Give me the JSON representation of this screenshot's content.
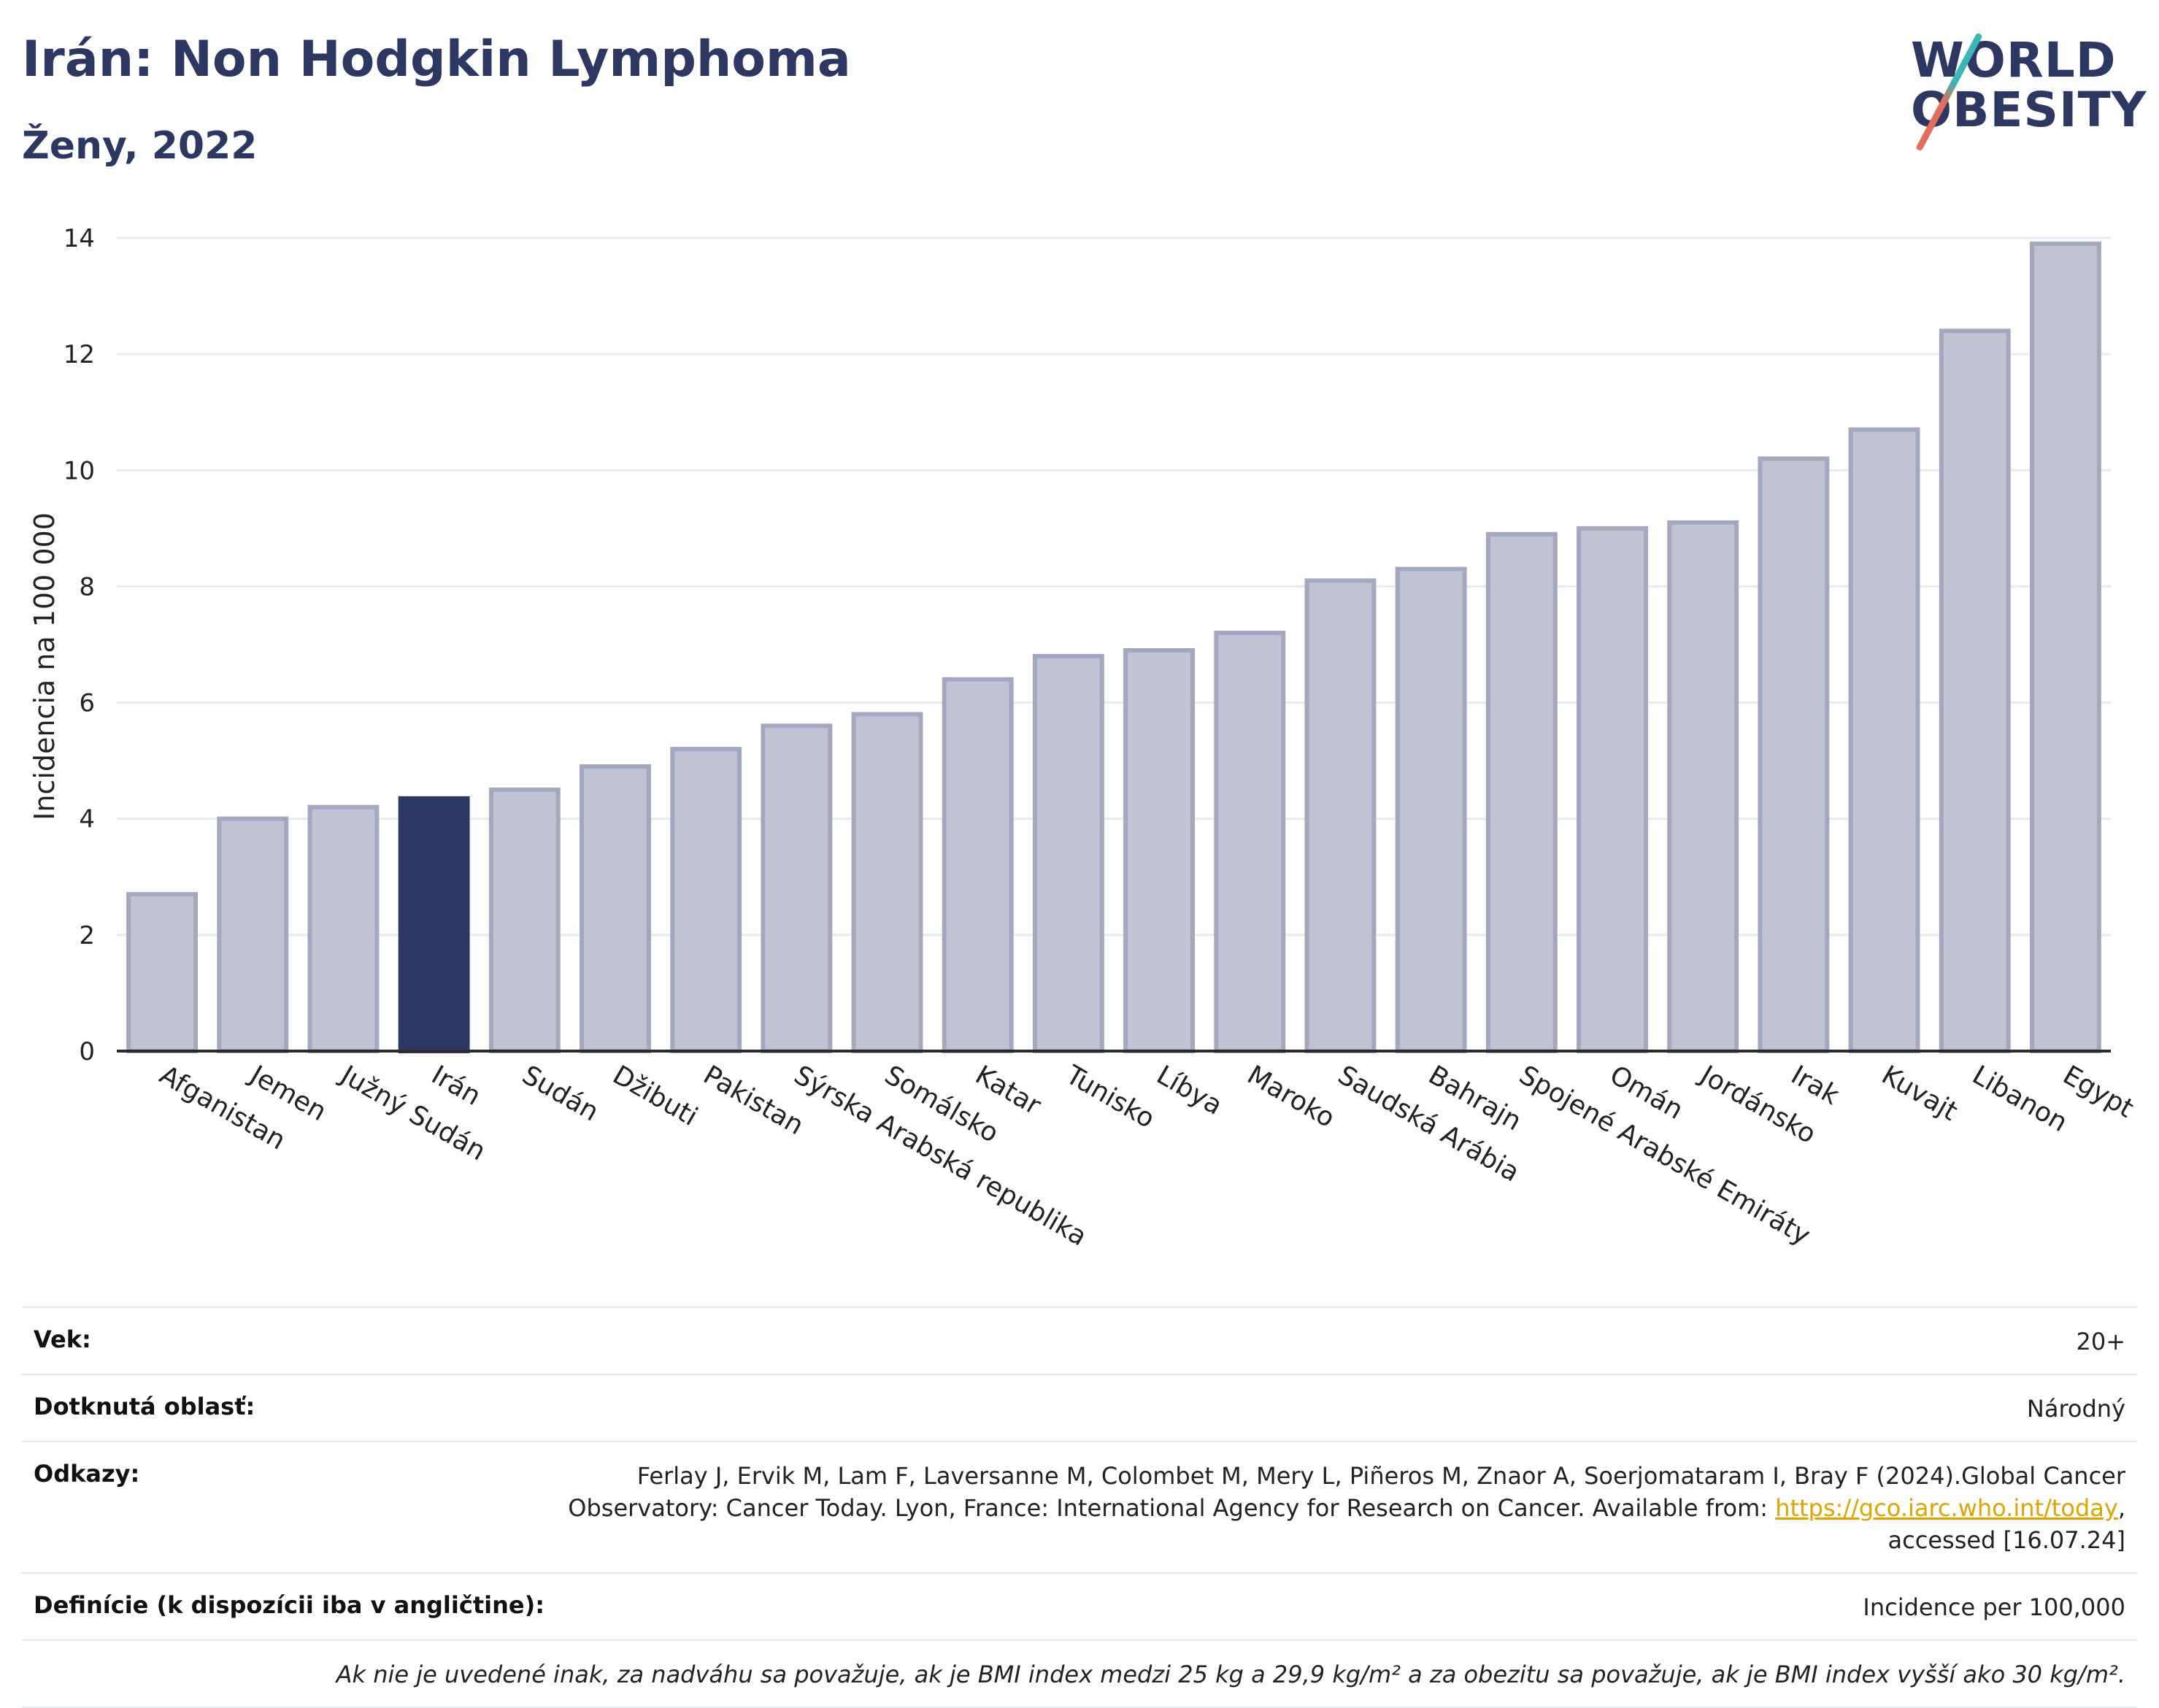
{
  "title": "Irán: Non Hodgkin Lymphoma",
  "subtitle": "Ženy, 2022",
  "logo": {
    "line1": "WORLD",
    "line2": "OBESITY"
  },
  "colors": {
    "highlight": "#2d3862",
    "bar": "#c0c3d1",
    "bar_stroke": "#a4a8bf",
    "grid": "#e8eaf0",
    "brand": "#2d3862"
  },
  "chart_data": {
    "type": "bar",
    "categories": [
      "Afganistan",
      "Jemen",
      "Južný Sudán",
      "Irán",
      "Sudán",
      "Džibuti",
      "Pakistan",
      "Sýrska Arabská republika",
      "Somálsko",
      "Katar",
      "Tunisko",
      "Líbya",
      "Maroko",
      "Saudská Arábia",
      "Bahrajn",
      "Spojené Arabské Emiráty",
      "Omán",
      "Jordánsko",
      "Irak",
      "Kuvajt",
      "Libanon",
      "Egypt"
    ],
    "values": [
      2.7,
      4.0,
      4.2,
      4.35,
      4.5,
      4.9,
      5.2,
      5.6,
      5.8,
      6.4,
      6.8,
      6.9,
      7.2,
      8.1,
      8.3,
      8.9,
      9.0,
      9.1,
      10.2,
      10.7,
      12.4,
      13.9
    ],
    "highlight": "Irán",
    "ylabel": "Incidencia na 100 000",
    "xlabel": "",
    "ylim": [
      0,
      14
    ],
    "yticks": [
      "0",
      "2",
      "4",
      "6",
      "8",
      "10",
      "12",
      "14"
    ],
    "grid": true
  },
  "table": {
    "age_label": "Vek:",
    "age_value": "20+",
    "area_label": "Dotknutá oblasť:",
    "area_value": "Národný",
    "refs_label": "Odkazy:",
    "refs_line1": "Ferlay J, Ervik M, Lam F, Laversanne M, Colombet M, Mery L, Piñeros M, Znaor A, Soerjomataram I, Bray F (2024).Global Cancer",
    "refs_line2": "Observatory: Cancer Today. Lyon, France: International Agency for Research on Cancer. Available from: ",
    "refs_link": "https://gco.iarc.who.int/today",
    "refs_line3": "accessed [16.07.24]",
    "def_label": "Definície (k dispozícii iba v angličtine):",
    "def_value": "Incidence per 100,000",
    "note": "Ak nie je uvedené inak, za nadváhu sa považuje, ak je BMI index medzi 25 kg a 29,9 kg/m² a za obezitu sa považuje, ak je BMI index vyšší ako 30 kg/m²."
  }
}
